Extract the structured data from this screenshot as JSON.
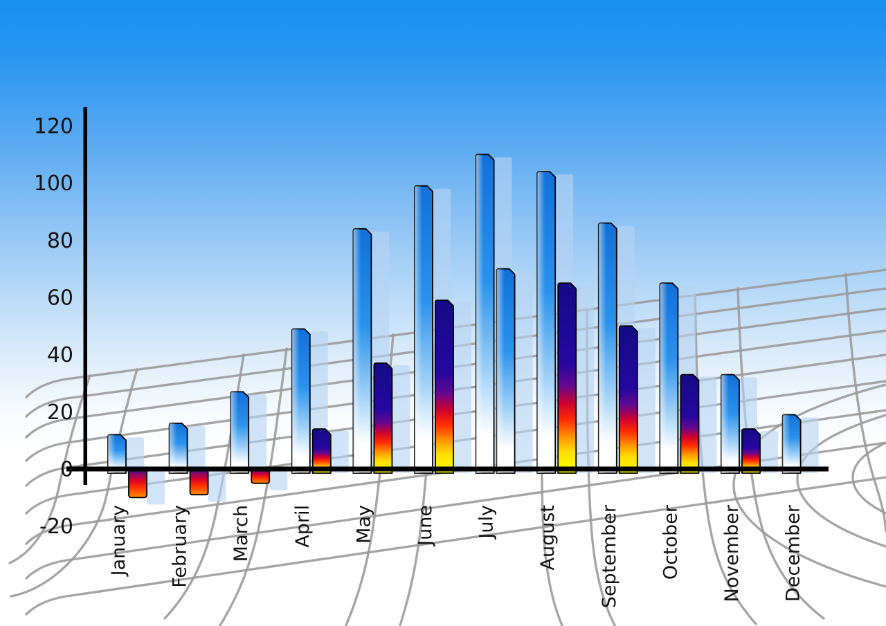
{
  "figure": {
    "description": "3D-style monthly bar chart illustration on sky gradient with curved perspective grid",
    "title": "",
    "legend": "none"
  },
  "chart_data": {
    "type": "bar",
    "title": "",
    "xlabel": "",
    "ylabel": "",
    "categories": [
      "January",
      "February",
      "March",
      "April",
      "May",
      "June",
      "July",
      "August",
      "September",
      "October",
      "November",
      "December"
    ],
    "series": [
      {
        "name": "primary-blue-bars",
        "values": [
          12,
          16,
          27,
          49,
          84,
          99,
          110,
          104,
          86,
          65,
          33,
          19
        ]
      },
      {
        "name": "secondary-bars",
        "values": [
          -10,
          -9,
          -5,
          14,
          37,
          59,
          70,
          65,
          50,
          33,
          14,
          null
        ],
        "styles": [
          "fire-negative",
          "fire-negative",
          "fire-negative",
          "fire",
          "fire",
          "fire",
          "blue",
          "fire",
          "fire",
          "fire",
          "fire",
          null
        ]
      }
    ],
    "y_axis": {
      "ticks": [
        120,
        100,
        80,
        60,
        40,
        20,
        0,
        -20
      ],
      "ylim": [
        -20,
        120
      ]
    },
    "x_axis": {
      "label_rotation_deg": -90
    },
    "grid": "decorative curved perspective grid",
    "legend_position": "none"
  },
  "colors": {
    "sky_top": "#1690f2",
    "bar_blue_gradient": [
      [
        "0%",
        "#1070d8"
      ],
      [
        "40%",
        "#2b92ec"
      ],
      [
        "68%",
        "#9fd0f7"
      ],
      [
        "88%",
        "#ffffff"
      ],
      [
        "100%",
        "#ffffff"
      ]
    ],
    "fire_gradient": [
      [
        "0%",
        "#140b86"
      ],
      [
        "42%",
        "#24079f"
      ],
      [
        "54%",
        "#64088f"
      ],
      [
        "63%",
        "#cc0032"
      ],
      [
        "72%",
        "#ff2d00"
      ],
      [
        "81%",
        "#ff9500"
      ],
      [
        "89%",
        "#ffdf00"
      ],
      [
        "100%",
        "#ffff00"
      ]
    ],
    "fire_negative_gradient": [
      [
        "0%",
        "#2c0b9e"
      ],
      [
        "22%",
        "#8c0a62"
      ],
      [
        "40%",
        "#d8002c"
      ],
      [
        "65%",
        "#ff2e00"
      ],
      [
        "100%",
        "#ff9000"
      ]
    ],
    "shadow": "#b7d4f2",
    "grid_line": "#9b9b9b",
    "axis": "#000000",
    "label_text": "#111111"
  }
}
